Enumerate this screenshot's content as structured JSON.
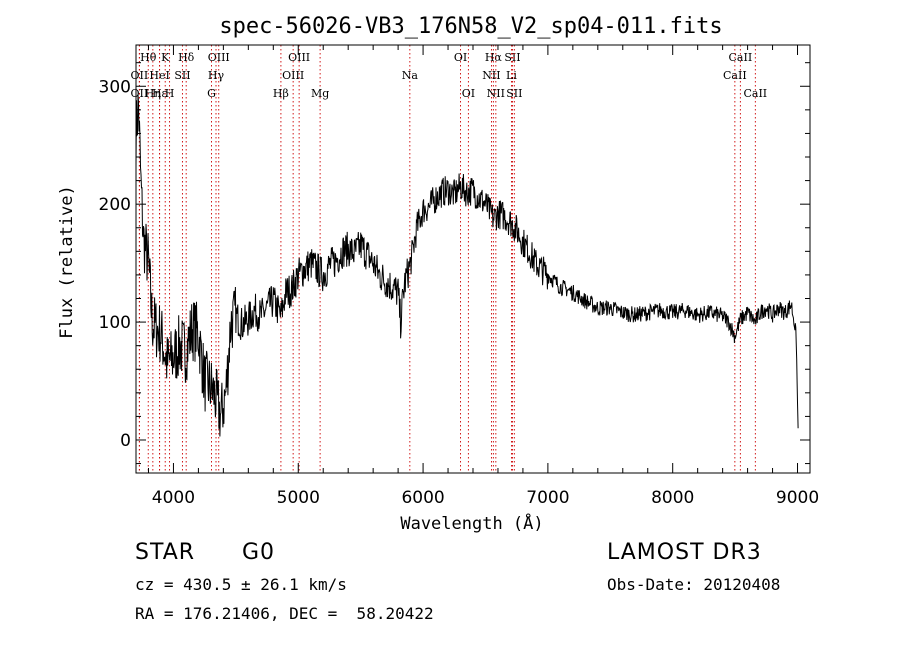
{
  "chart_data": {
    "type": "line",
    "title": "spec-56026-VB3_176N58_V2_sp04-011.fits",
    "xlabel": "Wavelength (Å)",
    "ylabel": "Flux (relative)",
    "xlim": [
      3700,
      9100
    ],
    "ylim": [
      -28,
      335
    ],
    "xticks": [
      4000,
      5000,
      6000,
      7000,
      8000,
      9000
    ],
    "yticks": [
      0,
      100,
      200,
      300
    ],
    "series": [
      {
        "name": "flux",
        "points": [
          [
            3700,
            260
          ],
          [
            3720,
            285
          ],
          [
            3740,
            215
          ],
          [
            3760,
            170
          ],
          [
            3780,
            160
          ],
          [
            3800,
            150
          ],
          [
            3830,
            100
          ],
          [
            3860,
            95
          ],
          [
            3900,
            90
          ],
          [
            3950,
            65
          ],
          [
            4000,
            70
          ],
          [
            4050,
            80
          ],
          [
            4100,
            75
          ],
          [
            4150,
            95
          ],
          [
            4200,
            90
          ],
          [
            4250,
            50
          ],
          [
            4300,
            45
          ],
          [
            4340,
            35
          ],
          [
            4380,
            20
          ],
          [
            4420,
            40
          ],
          [
            4460,
            100
          ],
          [
            4500,
            105
          ],
          [
            4550,
            98
          ],
          [
            4600,
            102
          ],
          [
            4650,
            110
          ],
          [
            4700,
            105
          ],
          [
            4750,
            112
          ],
          [
            4800,
            118
          ],
          [
            4861,
            105
          ],
          [
            4900,
            125
          ],
          [
            4950,
            128
          ],
          [
            5000,
            140
          ],
          [
            5050,
            145
          ],
          [
            5100,
            150
          ],
          [
            5150,
            145
          ],
          [
            5200,
            140
          ],
          [
            5250,
            148
          ],
          [
            5300,
            152
          ],
          [
            5350,
            160
          ],
          [
            5400,
            162
          ],
          [
            5450,
            158
          ],
          [
            5500,
            165
          ],
          [
            5550,
            158
          ],
          [
            5600,
            150
          ],
          [
            5650,
            140
          ],
          [
            5700,
            135
          ],
          [
            5750,
            130
          ],
          [
            5800,
            125
          ],
          [
            5820,
            100
          ],
          [
            5850,
            132
          ],
          [
            5900,
            150
          ],
          [
            5950,
            180
          ],
          [
            6000,
            195
          ],
          [
            6050,
            198
          ],
          [
            6100,
            205
          ],
          [
            6150,
            210
          ],
          [
            6200,
            212
          ],
          [
            6250,
            208
          ],
          [
            6300,
            215
          ],
          [
            6350,
            210
          ],
          [
            6400,
            212
          ],
          [
            6450,
            205
          ],
          [
            6500,
            200
          ],
          [
            6563,
            188
          ],
          [
            6600,
            192
          ],
          [
            6650,
            190
          ],
          [
            6700,
            185
          ],
          [
            6750,
            178
          ],
          [
            6800,
            168
          ],
          [
            6850,
            160
          ],
          [
            6900,
            150
          ],
          [
            6950,
            145
          ],
          [
            7000,
            140
          ],
          [
            7050,
            135
          ],
          [
            7100,
            130
          ],
          [
            7150,
            128
          ],
          [
            7200,
            125
          ],
          [
            7300,
            118
          ],
          [
            7400,
            112
          ],
          [
            7500,
            112
          ],
          [
            7600,
            108
          ],
          [
            7700,
            106
          ],
          [
            7800,
            108
          ],
          [
            7900,
            110
          ],
          [
            8000,
            108
          ],
          [
            8100,
            110
          ],
          [
            8200,
            106
          ],
          [
            8300,
            108
          ],
          [
            8400,
            105
          ],
          [
            8450,
            100
          ],
          [
            8498,
            88
          ],
          [
            8542,
            102
          ],
          [
            8600,
            108
          ],
          [
            8662,
            100
          ],
          [
            8700,
            108
          ],
          [
            8750,
            112
          ],
          [
            8800,
            106
          ],
          [
            8850,
            112
          ],
          [
            8900,
            108
          ],
          [
            8950,
            115
          ],
          [
            8975,
            100
          ],
          [
            8990,
            85
          ],
          [
            9000,
            30
          ],
          [
            9005,
            10
          ]
        ]
      }
    ],
    "lines": [
      {
        "label": "Hθ",
        "x": 3798,
        "row": 0
      },
      {
        "label": "OII",
        "x": 3727,
        "row": 1
      },
      {
        "label": "OII",
        "x": 3727,
        "row": 2
      },
      {
        "label": "Hε",
        "x": 3889,
        "row": 2
      },
      {
        "label": "K",
        "x": 3934,
        "row": 0
      },
      {
        "label": "HeI",
        "x": 3889,
        "row": 1
      },
      {
        "label": "Hη",
        "x": 3835,
        "row": 2
      },
      {
        "label": "H",
        "x": 3969,
        "row": 2
      },
      {
        "label": "Hδ",
        "x": 4102,
        "row": 0
      },
      {
        "label": "SII",
        "x": 4072,
        "row": 1
      },
      {
        "label": "OIII",
        "x": 4363,
        "row": 0
      },
      {
        "label": "Hγ",
        "x": 4341,
        "row": 1
      },
      {
        "label": "G",
        "x": 4305,
        "row": 2
      },
      {
        "label": "OIII",
        "x": 5007,
        "row": 0
      },
      {
        "label": "OIII",
        "x": 4959,
        "row": 1
      },
      {
        "label": "Hβ",
        "x": 4861,
        "row": 2
      },
      {
        "label": "Mg",
        "x": 5175,
        "row": 2
      },
      {
        "label": "Na",
        "x": 5894,
        "row": 1
      },
      {
        "label": "OI",
        "x": 6300,
        "row": 0
      },
      {
        "label": "OI",
        "x": 6363,
        "row": 2
      },
      {
        "label": "Hα",
        "x": 6563,
        "row": 0
      },
      {
        "label": "NII",
        "x": 6548,
        "row": 1
      },
      {
        "label": "NII",
        "x": 6583,
        "row": 2
      },
      {
        "label": "SII",
        "x": 6716,
        "row": 0
      },
      {
        "label": "Li",
        "x": 6708,
        "row": 1
      },
      {
        "label": "SII",
        "x": 6731,
        "row": 2
      },
      {
        "label": "CaII",
        "x": 8542,
        "row": 0
      },
      {
        "label": "CaII",
        "x": 8498,
        "row": 1
      },
      {
        "label": "CaII",
        "x": 8662,
        "row": 2
      }
    ],
    "line_color": "#cc0000"
  },
  "info": {
    "class": "STAR",
    "subclass": "G0",
    "survey": "LAMOST DR3",
    "cz": "cz = 430.5 ± 26.1 km/s",
    "obsdate": "Obs-Date: 20120408",
    "coords": "RA = 176.21406, DEC =  58.20422"
  }
}
